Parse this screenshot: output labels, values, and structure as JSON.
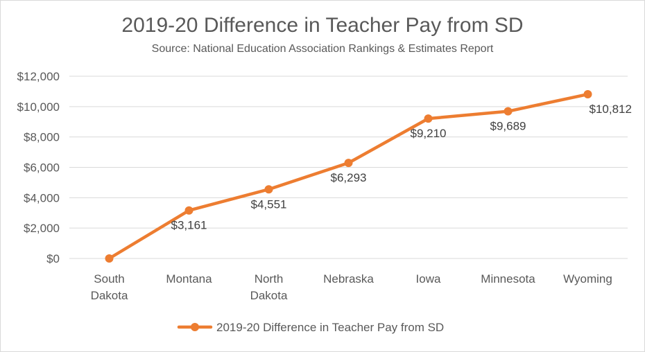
{
  "chart_data": {
    "type": "line",
    "title": "2019-20 Difference in Teacher Pay from SD",
    "subtitle": "Source: National Education Association Rankings & Estimates Report",
    "categories": [
      [
        "South",
        "Dakota"
      ],
      [
        "Montana"
      ],
      [
        "North",
        "Dakota"
      ],
      [
        "Nebraska"
      ],
      [
        "Iowa"
      ],
      [
        "Minnesota"
      ],
      [
        "Wyoming"
      ]
    ],
    "series": [
      {
        "name": "2019-20 Difference in Teacher Pay from SD",
        "values": [
          0,
          3161,
          4551,
          6293,
          9210,
          9689,
          10812
        ],
        "data_labels": [
          "",
          "$3,161",
          "$4,551",
          "$6,293",
          "$9,210",
          "$9,689",
          "$10,812"
        ],
        "color": "#ED7D31"
      }
    ],
    "y_ticks": [
      "$0",
      "$2,000",
      "$4,000",
      "$6,000",
      "$8,000",
      "$10,000",
      "$12,000"
    ],
    "ylim": [
      0,
      12000
    ],
    "grid": true,
    "legend_position": "bottom"
  },
  "colors": {
    "line": "#ED7D31",
    "grid": "#d9d9d9",
    "text": "#595959"
  }
}
